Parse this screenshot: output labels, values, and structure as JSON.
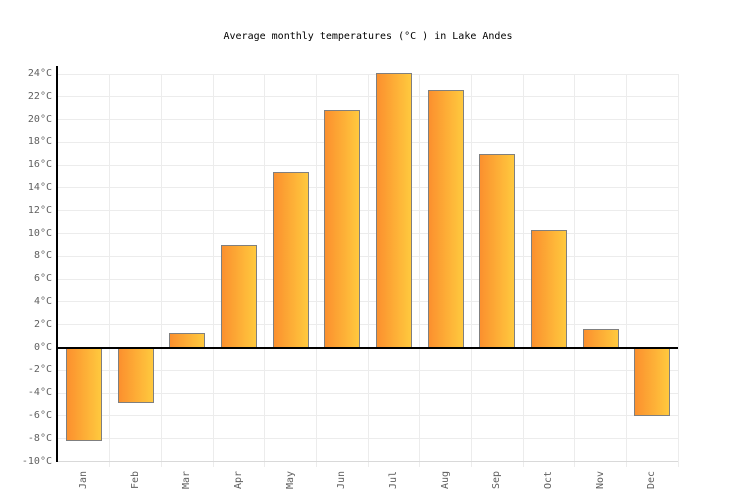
{
  "chart_data": {
    "type": "bar",
    "title": "Average monthly temperatures (°C ) in Lake Andes",
    "unit": "°C",
    "categories": [
      "Jan",
      "Feb",
      "Mar",
      "Apr",
      "May",
      "Jun",
      "Jul",
      "Aug",
      "Sep",
      "Oct",
      "Nov",
      "Dec"
    ],
    "values": [
      -8.2,
      -4.9,
      1.3,
      9.0,
      15.4,
      20.8,
      24.1,
      22.6,
      17.0,
      10.3,
      1.6,
      -6.0
    ],
    "ylim": [
      -10,
      24
    ],
    "ytick_step": 2,
    "ytick_labels": [
      "24°C",
      "22°C",
      "20°C",
      "18°C",
      "16°C",
      "14°C",
      "12°C",
      "10°C",
      "8°C",
      "6°C",
      "4°C",
      "2°C",
      "0°C",
      "-2°C",
      "-4°C",
      "-6°C",
      "-8°C",
      "-10°C"
    ],
    "grid": true,
    "legend": false,
    "colors": {
      "bar_gradient_left": "#FB902E",
      "bar_gradient_right": "#FFC93E",
      "bar_border": "#7F7F7F",
      "axis": "#000000",
      "grid": "#ECECEC",
      "baseline": "#D9D9D9",
      "tick_label": "#606060",
      "title": "#000000",
      "background": "#FFFFFF"
    }
  }
}
